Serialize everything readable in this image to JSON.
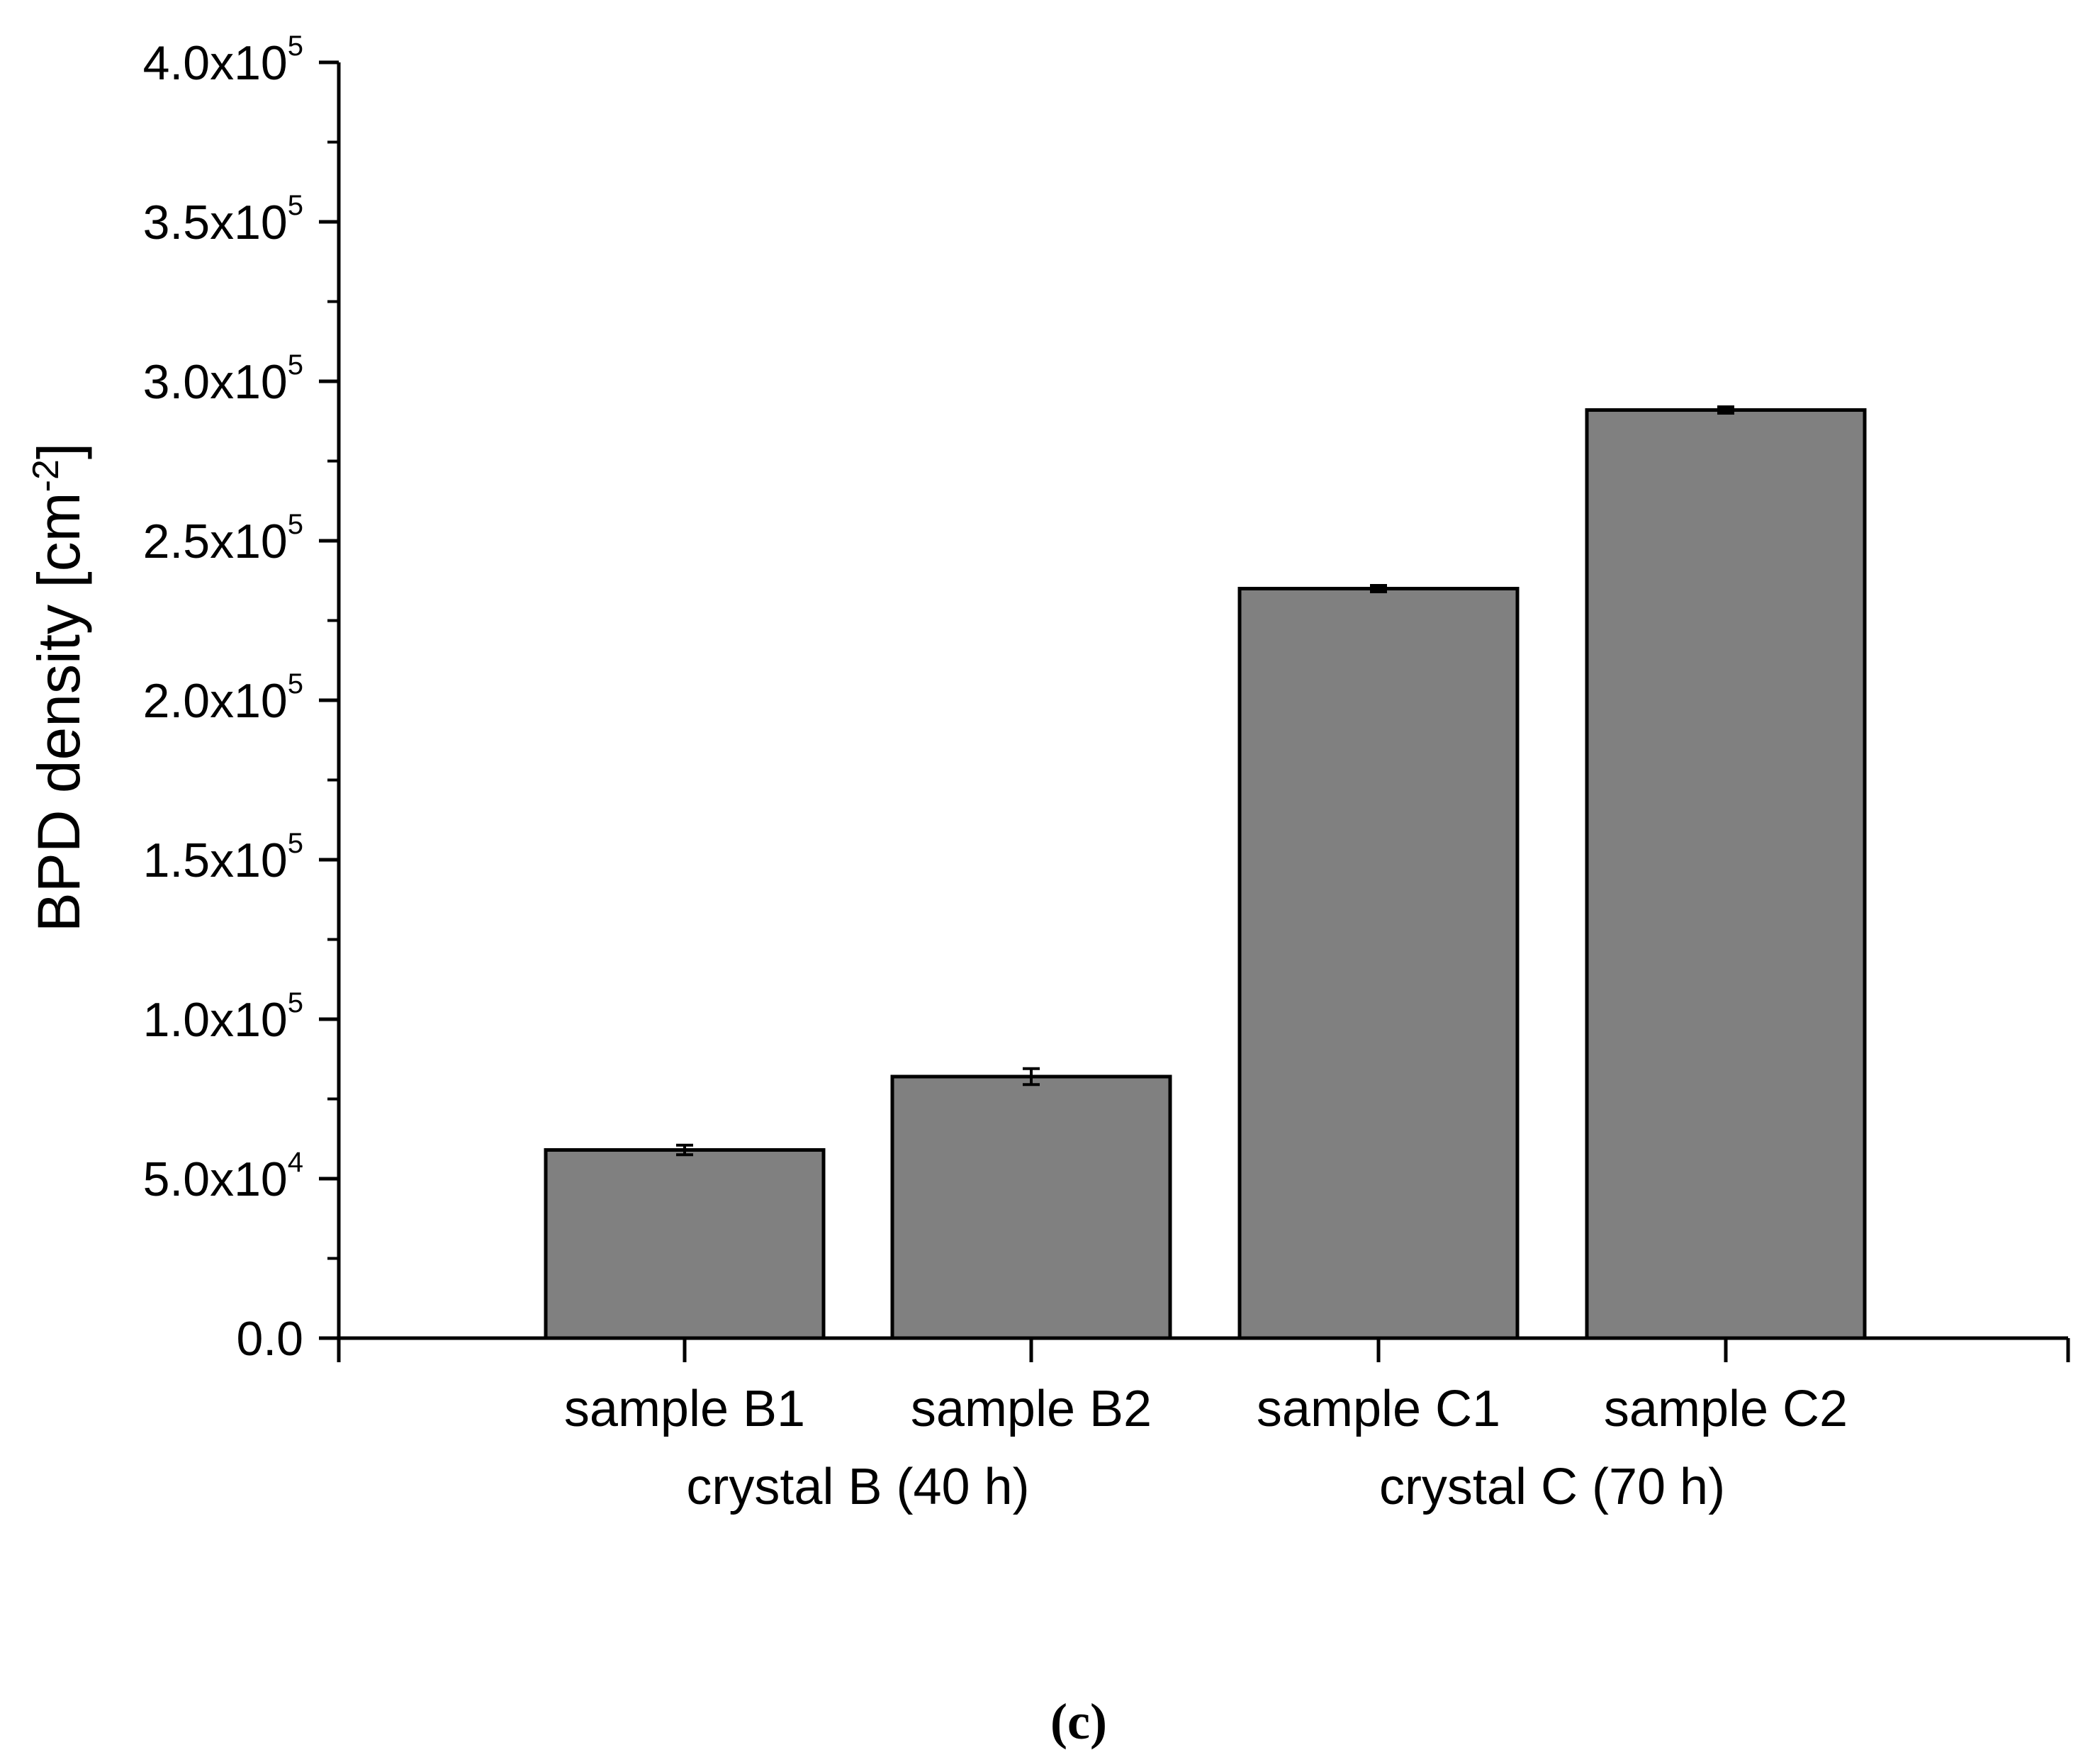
{
  "chart_data": {
    "type": "bar",
    "title": "",
    "xlabel": "",
    "ylabel": "BPD density [cm",
    "ylabel_sup": "-2",
    "ylabel_close": "]",
    "ylim": [
      0,
      400000
    ],
    "categories": [
      "sample B1",
      "sample B2",
      "sample C1",
      "sample C2"
    ],
    "values": [
      59000,
      82000,
      235000,
      291000
    ],
    "errors": [
      1500,
      2500,
      1000,
      1000
    ],
    "groups": [
      {
        "label": "crystal B (40 h)",
        "members": [
          0,
          1
        ]
      },
      {
        "label": "crystal C (70 h)",
        "members": [
          2,
          3
        ]
      }
    ],
    "y_ticks": [
      {
        "value": 0,
        "mantissa": "0.0",
        "exp": ""
      },
      {
        "value": 50000,
        "mantissa": "5.0x10",
        "exp": "4"
      },
      {
        "value": 100000,
        "mantissa": "1.0x10",
        "exp": "5"
      },
      {
        "value": 150000,
        "mantissa": "1.5x10",
        "exp": "5"
      },
      {
        "value": 200000,
        "mantissa": "2.0x10",
        "exp": "5"
      },
      {
        "value": 250000,
        "mantissa": "2.5x10",
        "exp": "5"
      },
      {
        "value": 300000,
        "mantissa": "3.0x10",
        "exp": "5"
      },
      {
        "value": 350000,
        "mantissa": "3.5x10",
        "exp": "5"
      },
      {
        "value": 400000,
        "mantissa": "4.0x10",
        "exp": "5"
      }
    ],
    "bar_color": "#808080",
    "edge_color": "#000000",
    "grid": false,
    "legend": "none"
  },
  "caption": "(c)"
}
